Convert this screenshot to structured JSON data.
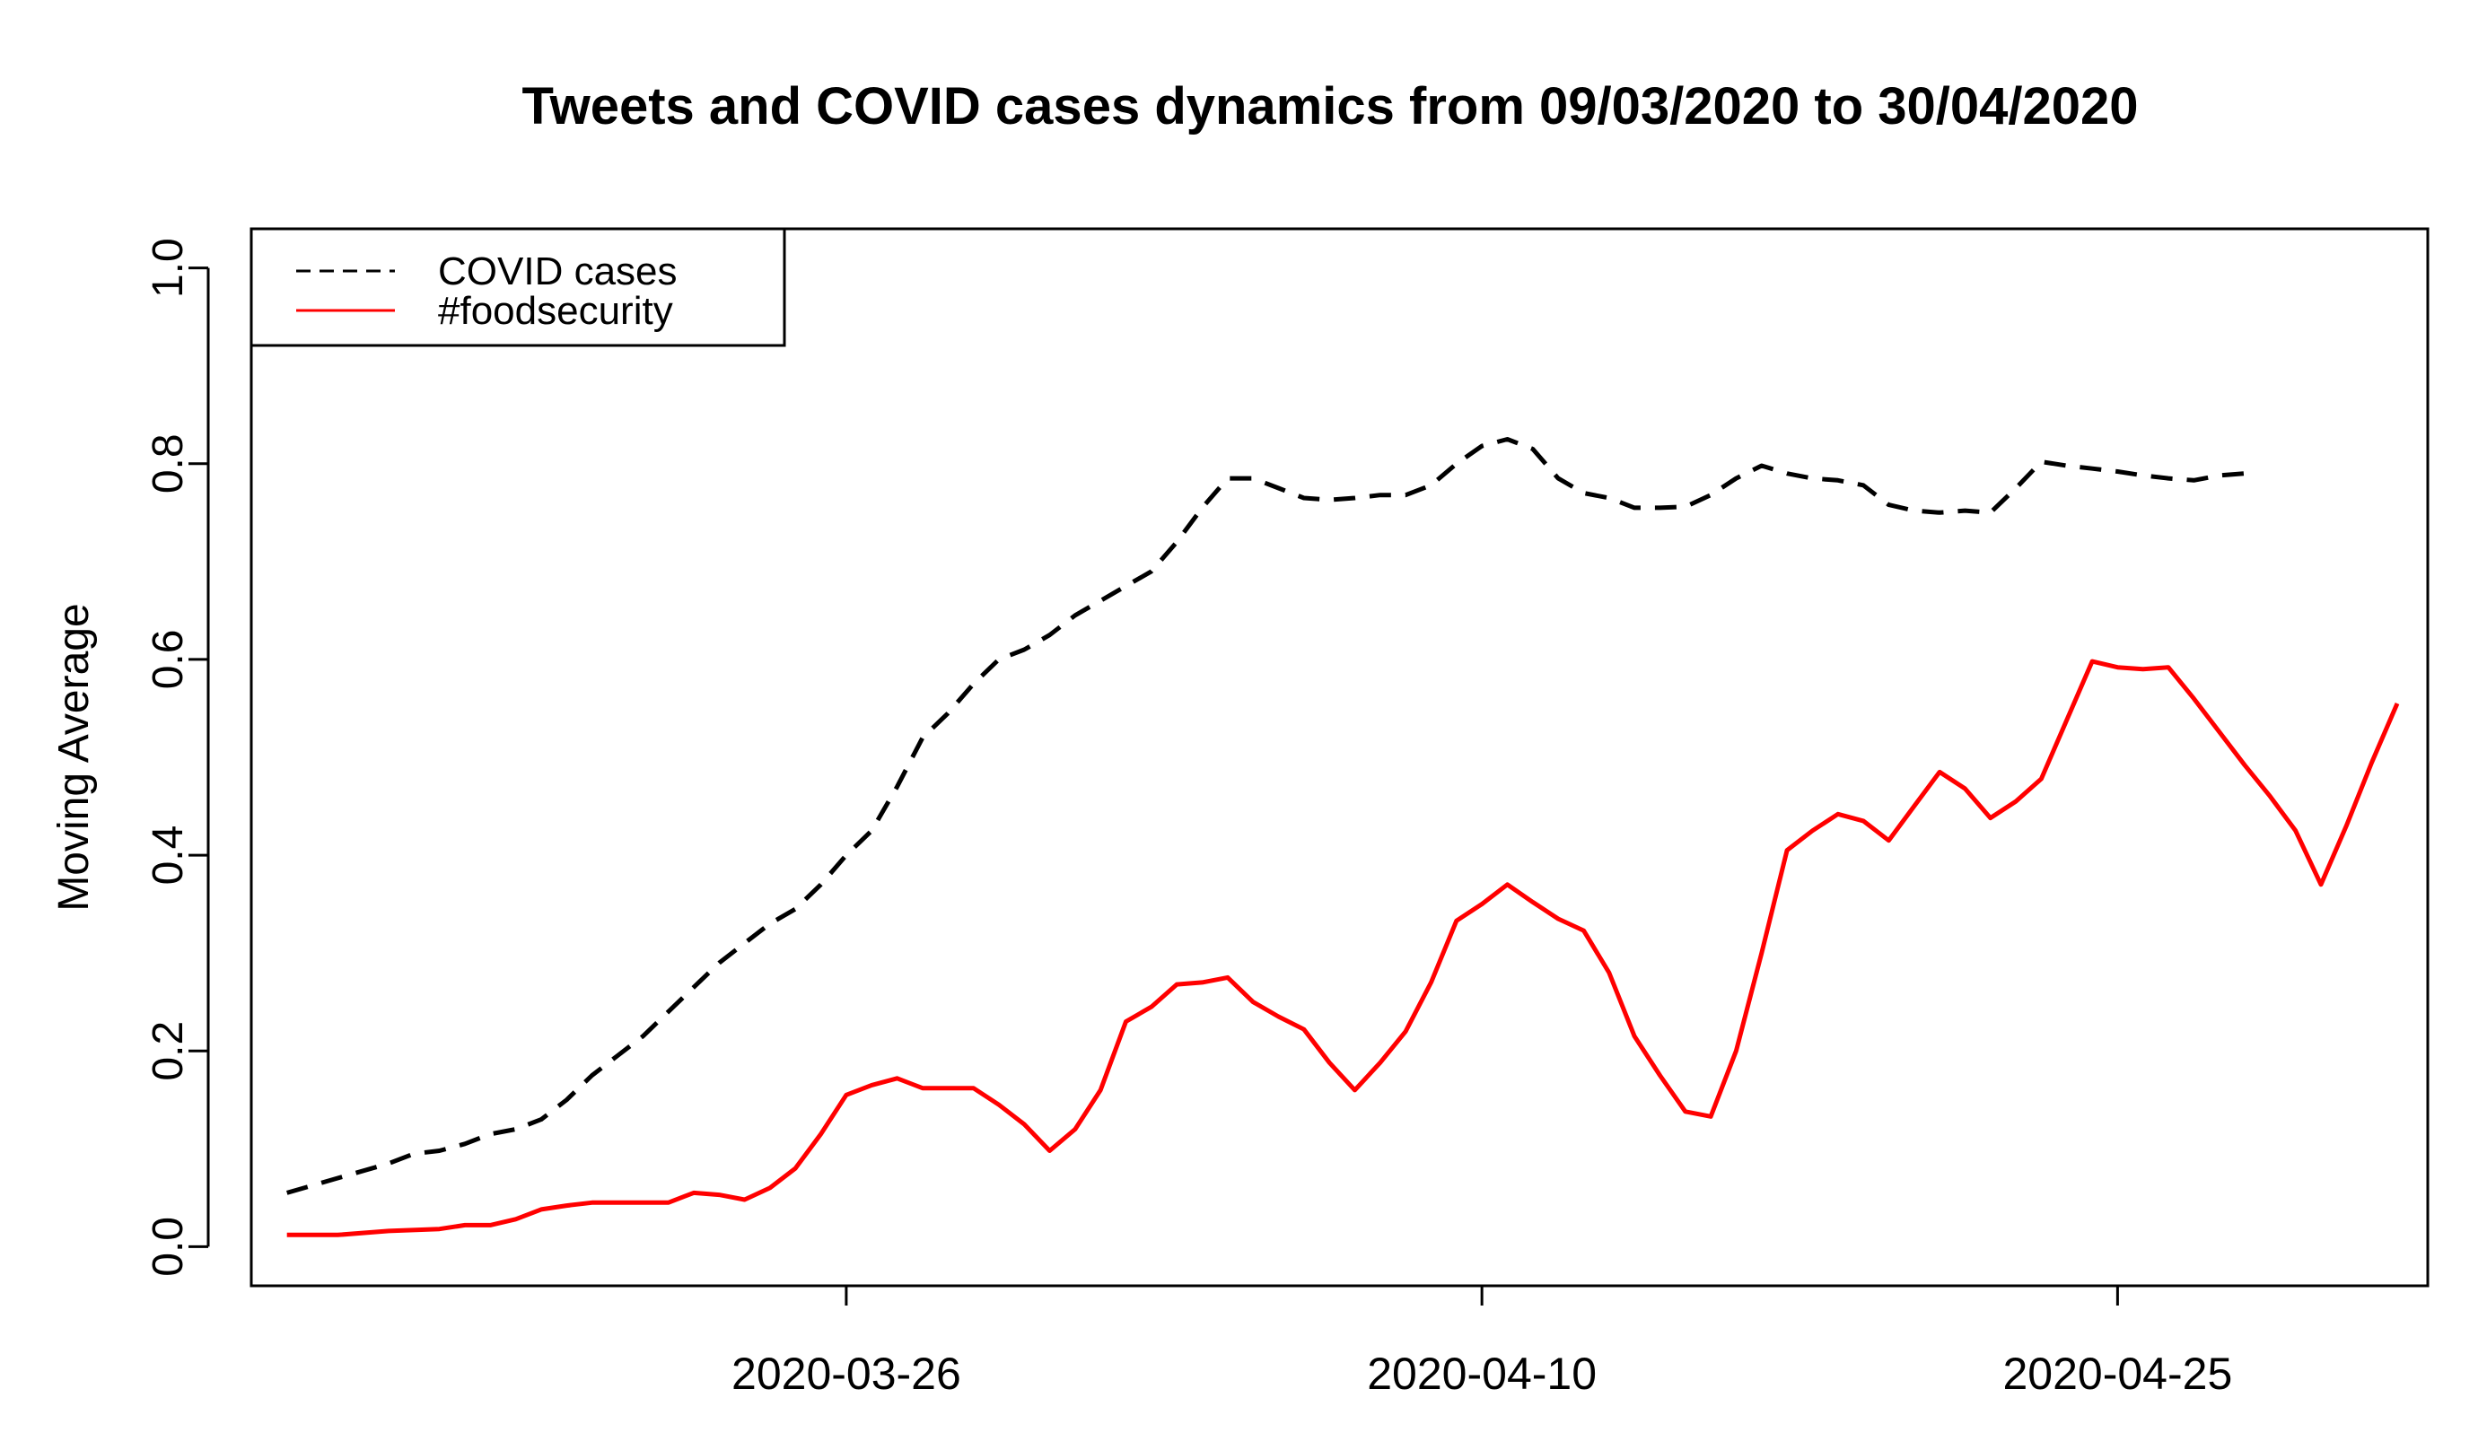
{
  "chart_data": {
    "type": "line",
    "title": "Tweets and COVID cases dynamics from 09/03/2020 to 30/04/2020",
    "xlabel": "",
    "ylabel": "Moving Average",
    "xlim": [
      -1.4,
      84.2
    ],
    "ylim": [
      -0.04,
      1.04
    ],
    "x_ticks": [
      {
        "x": 22,
        "label": "2020-03-26"
      },
      {
        "x": 47,
        "label": "2020-04-10"
      },
      {
        "x": 72,
        "label": "2020-04-25"
      }
    ],
    "y_ticks": [
      {
        "y": 0.0,
        "label": "0.0"
      },
      {
        "y": 0.2,
        "label": "0.2"
      },
      {
        "y": 0.4,
        "label": "0.4"
      },
      {
        "y": 0.6,
        "label": "0.6"
      },
      {
        "y": 0.8,
        "label": "0.8"
      },
      {
        "y": 1.0,
        "label": "1.0"
      }
    ],
    "grid": false,
    "legend": {
      "position": "top-left",
      "entries": [
        {
          "label": "COVID cases",
          "color": "#000000",
          "dash": "dashed"
        },
        {
          "label": "#foodsecurity",
          "color": "#ff0000",
          "dash": "solid"
        }
      ]
    },
    "series": [
      {
        "name": "COVID cases",
        "color": "#000000",
        "dash": "dashed",
        "points": [
          [
            0,
            0.055
          ],
          [
            2,
            0.07
          ],
          [
            4,
            0.085
          ],
          [
            5,
            0.095
          ],
          [
            6,
            0.098
          ],
          [
            7,
            0.105
          ],
          [
            8,
            0.115
          ],
          [
            9,
            0.12
          ],
          [
            10,
            0.13
          ],
          [
            11,
            0.15
          ],
          [
            12,
            0.175
          ],
          [
            13,
            0.195
          ],
          [
            14,
            0.215
          ],
          [
            15,
            0.24
          ],
          [
            16,
            0.265
          ],
          [
            17,
            0.29
          ],
          [
            18,
            0.31
          ],
          [
            19,
            0.33
          ],
          [
            20,
            0.345
          ],
          [
            21,
            0.37
          ],
          [
            22,
            0.4
          ],
          [
            23,
            0.425
          ],
          [
            24,
            0.47
          ],
          [
            25,
            0.52
          ],
          [
            26,
            0.545
          ],
          [
            27,
            0.575
          ],
          [
            28,
            0.6
          ],
          [
            29,
            0.61
          ],
          [
            30,
            0.625
          ],
          [
            31,
            0.645
          ],
          [
            32,
            0.66
          ],
          [
            33,
            0.675
          ],
          [
            34,
            0.69
          ],
          [
            35,
            0.72
          ],
          [
            36,
            0.755
          ],
          [
            37,
            0.785
          ],
          [
            38,
            0.785
          ],
          [
            39,
            0.775
          ],
          [
            40,
            0.765
          ],
          [
            41,
            0.763
          ],
          [
            42,
            0.765
          ],
          [
            43,
            0.768
          ],
          [
            44,
            0.768
          ],
          [
            45,
            0.778
          ],
          [
            46,
            0.8
          ],
          [
            47,
            0.818
          ],
          [
            48,
            0.825
          ],
          [
            49,
            0.815
          ],
          [
            50,
            0.785
          ],
          [
            51,
            0.77
          ],
          [
            52,
            0.765
          ],
          [
            53,
            0.755
          ],
          [
            54,
            0.755
          ],
          [
            55,
            0.756
          ],
          [
            56,
            0.768
          ],
          [
            57,
            0.785
          ],
          [
            58,
            0.798
          ],
          [
            59,
            0.79
          ],
          [
            60,
            0.785
          ],
          [
            61,
            0.783
          ],
          [
            62,
            0.778
          ],
          [
            63,
            0.758
          ],
          [
            64,
            0.752
          ],
          [
            65,
            0.75
          ],
          [
            66,
            0.752
          ],
          [
            67,
            0.75
          ],
          [
            68,
            0.775
          ],
          [
            69,
            0.802
          ],
          [
            70,
            0.798
          ],
          [
            71,
            0.795
          ],
          [
            72,
            0.792
          ],
          [
            73,
            0.788
          ],
          [
            74,
            0.785
          ],
          [
            75,
            0.783
          ],
          [
            76,
            0.788
          ],
          [
            77,
            0.79
          ]
        ]
      },
      {
        "name": "#foodsecurity",
        "color": "#ff0000",
        "dash": "solid",
        "points": [
          [
            0,
            0.012
          ],
          [
            2,
            0.012
          ],
          [
            4,
            0.016
          ],
          [
            6,
            0.018
          ],
          [
            7,
            0.022
          ],
          [
            8,
            0.022
          ],
          [
            9,
            0.028
          ],
          [
            10,
            0.038
          ],
          [
            11,
            0.042
          ],
          [
            12,
            0.045
          ],
          [
            13,
            0.045
          ],
          [
            14,
            0.045
          ],
          [
            15,
            0.045
          ],
          [
            16,
            0.055
          ],
          [
            17,
            0.053
          ],
          [
            18,
            0.048
          ],
          [
            19,
            0.06
          ],
          [
            20,
            0.08
          ],
          [
            21,
            0.115
          ],
          [
            22,
            0.155
          ],
          [
            23,
            0.165
          ],
          [
            24,
            0.172
          ],
          [
            25,
            0.162
          ],
          [
            26,
            0.162
          ],
          [
            27,
            0.162
          ],
          [
            28,
            0.145
          ],
          [
            29,
            0.125
          ],
          [
            30,
            0.098
          ],
          [
            31,
            0.12
          ],
          [
            32,
            0.16
          ],
          [
            33,
            0.23
          ],
          [
            34,
            0.245
          ],
          [
            35,
            0.268
          ],
          [
            36,
            0.27
          ],
          [
            37,
            0.275
          ],
          [
            38,
            0.25
          ],
          [
            39,
            0.235
          ],
          [
            40,
            0.222
          ],
          [
            41,
            0.188
          ],
          [
            42,
            0.16
          ],
          [
            43,
            0.188
          ],
          [
            44,
            0.22
          ],
          [
            45,
            0.27
          ],
          [
            46,
            0.333
          ],
          [
            47,
            0.35
          ],
          [
            48,
            0.37
          ],
          [
            49,
            0.352
          ],
          [
            50,
            0.335
          ],
          [
            51,
            0.323
          ],
          [
            52,
            0.28
          ],
          [
            53,
            0.215
          ],
          [
            54,
            0.175
          ],
          [
            55,
            0.138
          ],
          [
            56,
            0.133
          ],
          [
            57,
            0.2
          ],
          [
            58,
            0.3
          ],
          [
            59,
            0.405
          ],
          [
            60,
            0.425
          ],
          [
            61,
            0.442
          ],
          [
            62,
            0.435
          ],
          [
            63,
            0.415
          ],
          [
            64,
            0.45
          ],
          [
            65,
            0.485
          ],
          [
            66,
            0.468
          ],
          [
            67,
            0.438
          ],
          [
            68,
            0.455
          ],
          [
            69,
            0.478
          ],
          [
            70,
            0.538
          ],
          [
            71,
            0.598
          ],
          [
            72,
            0.592
          ],
          [
            73,
            0.59
          ],
          [
            74,
            0.592
          ],
          [
            75,
            0.56
          ],
          [
            76,
            0.526
          ],
          [
            77,
            0.492
          ],
          [
            78,
            0.46
          ],
          [
            79,
            0.425
          ],
          [
            80,
            0.37
          ],
          [
            81,
            0.43
          ],
          [
            82,
            0.495
          ],
          [
            83,
            0.555
          ]
        ]
      }
    ]
  }
}
